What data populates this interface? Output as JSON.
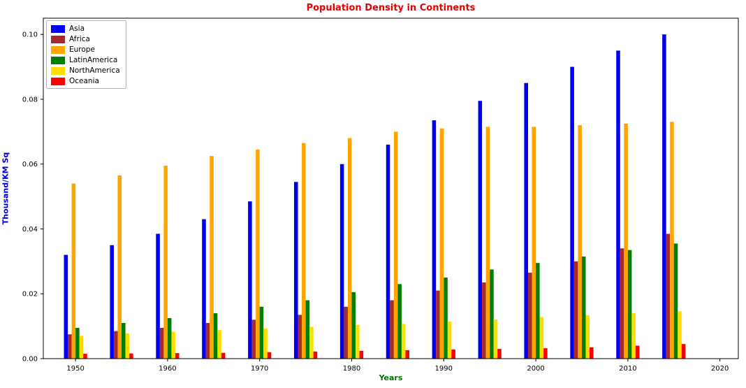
{
  "chart_data": {
    "type": "bar",
    "title": "Population Density in Continents",
    "xlabel": "Years",
    "ylabel": "Thousand/KM Sq",
    "title_color": "#e60000",
    "xlabel_color": "#007000",
    "ylabel_color": "#0000cd",
    "legend_position": "upper left",
    "grid": false,
    "x": [
      1950,
      1955,
      1960,
      1965,
      1970,
      1975,
      1980,
      1985,
      1990,
      1995,
      2000,
      2005,
      2010,
      2015
    ],
    "xticks": [
      1950,
      1960,
      1970,
      1980,
      1990,
      2000,
      2010,
      2020
    ],
    "yticks": [
      0,
      0.02,
      0.04,
      0.06,
      0.08,
      0.1
    ],
    "xlim": [
      1946.5,
      2022
    ],
    "ylim": [
      0,
      0.105
    ],
    "bar_width_years": 0.42,
    "series": [
      {
        "name": "Asia",
        "color": "#0000ee",
        "values": [
          0.032,
          0.035,
          0.0385,
          0.043,
          0.0485,
          0.0545,
          0.06,
          0.066,
          0.0735,
          0.0795,
          0.085,
          0.09,
          0.095,
          0.1
        ]
      },
      {
        "name": "Africa",
        "color": "#a52a2a",
        "values": [
          0.0075,
          0.0085,
          0.0095,
          0.011,
          0.012,
          0.0135,
          0.016,
          0.018,
          0.021,
          0.0235,
          0.0265,
          0.03,
          0.034,
          0.0385
        ]
      },
      {
        "name": "Europe",
        "color": "#ffa500",
        "values": [
          0.054,
          0.0565,
          0.0595,
          0.0625,
          0.0645,
          0.0665,
          0.068,
          0.07,
          0.071,
          0.0715,
          0.0715,
          0.072,
          0.0725,
          0.073
        ]
      },
      {
        "name": "LatinAmerica",
        "color": "#008000",
        "values": [
          0.0095,
          0.011,
          0.0125,
          0.014,
          0.016,
          0.018,
          0.0205,
          0.023,
          0.025,
          0.0275,
          0.0295,
          0.0315,
          0.0335,
          0.0355
        ]
      },
      {
        "name": "NorthAmerica",
        "color": "#ffdd00",
        "values": [
          0.007,
          0.0078,
          0.0083,
          0.0088,
          0.0093,
          0.0098,
          0.0104,
          0.0107,
          0.0114,
          0.0121,
          0.0128,
          0.0134,
          0.014,
          0.0146
        ]
      },
      {
        "name": "Oceania",
        "color": "#ff0000",
        "values": [
          0.0015,
          0.0016,
          0.0017,
          0.0018,
          0.002,
          0.0022,
          0.0024,
          0.0026,
          0.0028,
          0.003,
          0.0032,
          0.0035,
          0.004,
          0.0045
        ]
      }
    ]
  }
}
